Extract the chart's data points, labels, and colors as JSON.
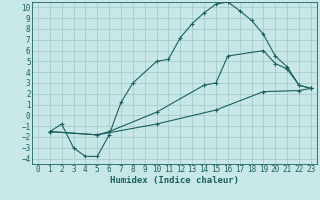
{
  "xlabel": "Humidex (Indice chaleur)",
  "bg_color": "#c8e8e8",
  "grid_color": "#a0c8c8",
  "line_color": "#1a6060",
  "xlim": [
    -0.5,
    23.5
  ],
  "ylim": [
    -4.5,
    10.5
  ],
  "xticks": [
    0,
    1,
    2,
    3,
    4,
    5,
    6,
    7,
    8,
    9,
    10,
    11,
    12,
    13,
    14,
    15,
    16,
    17,
    18,
    19,
    20,
    21,
    22,
    23
  ],
  "yticks": [
    -4,
    -3,
    -2,
    -1,
    0,
    1,
    2,
    3,
    4,
    5,
    6,
    7,
    8,
    9,
    10
  ],
  "curve1_x": [
    1,
    2,
    3,
    4,
    5,
    6,
    7,
    8,
    10,
    11,
    12,
    13,
    14,
    15,
    16,
    17,
    18,
    19,
    20,
    21,
    22,
    23
  ],
  "curve1_y": [
    -1.5,
    -0.8,
    -3.0,
    -3.8,
    -3.8,
    -1.8,
    1.2,
    3.0,
    5.0,
    5.2,
    7.2,
    8.5,
    9.5,
    10.3,
    10.5,
    9.7,
    8.8,
    7.5,
    5.5,
    4.5,
    2.8,
    2.5
  ],
  "curve2_x": [
    1,
    5,
    6,
    10,
    14,
    15,
    16,
    19,
    20,
    21,
    22,
    23
  ],
  "curve2_y": [
    -1.5,
    -1.8,
    -1.5,
    0.3,
    2.8,
    3.0,
    5.5,
    6.0,
    4.8,
    4.3,
    2.8,
    2.5
  ],
  "curve3_x": [
    1,
    5,
    10,
    15,
    19,
    22,
    23
  ],
  "curve3_y": [
    -1.5,
    -1.8,
    -0.8,
    0.5,
    2.2,
    2.3,
    2.5
  ],
  "tick_fontsize": 5.5,
  "label_fontsize": 6.5
}
